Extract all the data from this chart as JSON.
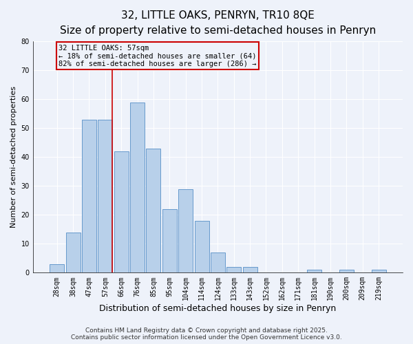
{
  "title": "32, LITTLE OAKS, PENRYN, TR10 8QE",
  "subtitle": "Size of property relative to semi-detached houses in Penryn",
  "xlabel": "Distribution of semi-detached houses by size in Penryn",
  "ylabel": "Number of semi-detached properties",
  "bar_labels": [
    "28sqm",
    "38sqm",
    "47sqm",
    "57sqm",
    "66sqm",
    "76sqm",
    "85sqm",
    "95sqm",
    "104sqm",
    "114sqm",
    "124sqm",
    "133sqm",
    "143sqm",
    "152sqm",
    "162sqm",
    "171sqm",
    "181sqm",
    "190sqm",
    "200sqm",
    "209sqm",
    "219sqm"
  ],
  "bar_values": [
    3,
    14,
    53,
    53,
    42,
    59,
    43,
    22,
    29,
    18,
    7,
    2,
    2,
    0,
    0,
    0,
    1,
    0,
    1,
    0,
    1
  ],
  "bar_color": "#b8d0ea",
  "bar_edge_color": "#6699cc",
  "highlight_index": 3,
  "highlight_line_color": "#cc0000",
  "highlight_label": "32 LITTLE OAKS: 57sqm",
  "annotation_line1": "← 18% of semi-detached houses are smaller (64)",
  "annotation_line2": "82% of semi-detached houses are larger (286) →",
  "annotation_box_edge_color": "#cc0000",
  "ylim": [
    0,
    80
  ],
  "yticks": [
    0,
    10,
    20,
    30,
    40,
    50,
    60,
    70,
    80
  ],
  "background_color": "#eef2fa",
  "grid_color": "#ffffff",
  "footer_line1": "Contains HM Land Registry data © Crown copyright and database right 2025.",
  "footer_line2": "Contains public sector information licensed under the Open Government Licence v3.0.",
  "title_fontsize": 11,
  "subtitle_fontsize": 9,
  "xlabel_fontsize": 9,
  "ylabel_fontsize": 8,
  "tick_fontsize": 7,
  "annotation_fontsize": 7.5,
  "footer_fontsize": 6.5
}
